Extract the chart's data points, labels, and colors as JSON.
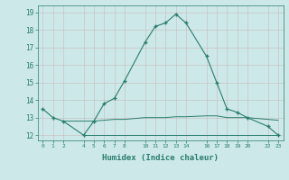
{
  "xlabel": "Humidex (Indice chaleur)",
  "main_x": [
    0,
    1,
    2,
    4,
    5,
    6,
    7,
    8,
    10,
    11,
    12,
    13,
    14,
    16,
    17,
    18,
    19,
    20,
    22,
    23
  ],
  "main_y": [
    13.5,
    13.0,
    12.8,
    12.0,
    12.8,
    13.8,
    14.1,
    15.1,
    17.3,
    18.2,
    18.4,
    18.9,
    18.4,
    16.5,
    15.0,
    13.5,
    13.3,
    13.0,
    12.5,
    12.0
  ],
  "flat1_x": [
    2,
    4,
    5,
    6,
    7,
    8,
    10,
    11,
    12,
    13,
    14,
    16,
    17,
    18,
    19,
    20,
    22,
    23
  ],
  "flat1_y": [
    12.8,
    12.8,
    12.8,
    12.85,
    12.9,
    12.9,
    13.0,
    13.0,
    13.0,
    13.05,
    13.05,
    13.1,
    13.1,
    13.0,
    13.0,
    13.0,
    12.9,
    12.85
  ],
  "flat2_x": [
    4,
    5,
    6,
    7,
    8,
    10,
    11,
    12,
    13,
    14,
    16,
    17,
    18,
    19,
    20,
    22,
    23
  ],
  "flat2_y": [
    12.0,
    12.0,
    12.0,
    12.0,
    12.0,
    12.0,
    12.0,
    12.0,
    12.0,
    12.0,
    12.0,
    12.0,
    12.0,
    12.0,
    12.0,
    12.0,
    12.0
  ],
  "line_color": "#2a7d6e",
  "bg_color": "#cce8e8",
  "plot_bg": "#cce8e8",
  "grid_color": "#b0d4d4",
  "ylim": [
    11.7,
    19.4
  ],
  "xlim": [
    -0.5,
    23.5
  ],
  "yticks": [
    12,
    13,
    14,
    15,
    16,
    17,
    18,
    19
  ],
  "xticks": [
    0,
    1,
    2,
    4,
    5,
    6,
    7,
    8,
    10,
    11,
    12,
    13,
    14,
    16,
    17,
    18,
    19,
    20,
    22,
    23
  ],
  "xtick_labels": [
    "0",
    "1",
    "2",
    "4",
    "5",
    "6",
    "7",
    "8",
    "10",
    "11",
    "12",
    "13",
    "14",
    "16",
    "17",
    "18",
    "19",
    "20",
    "22",
    "23"
  ]
}
